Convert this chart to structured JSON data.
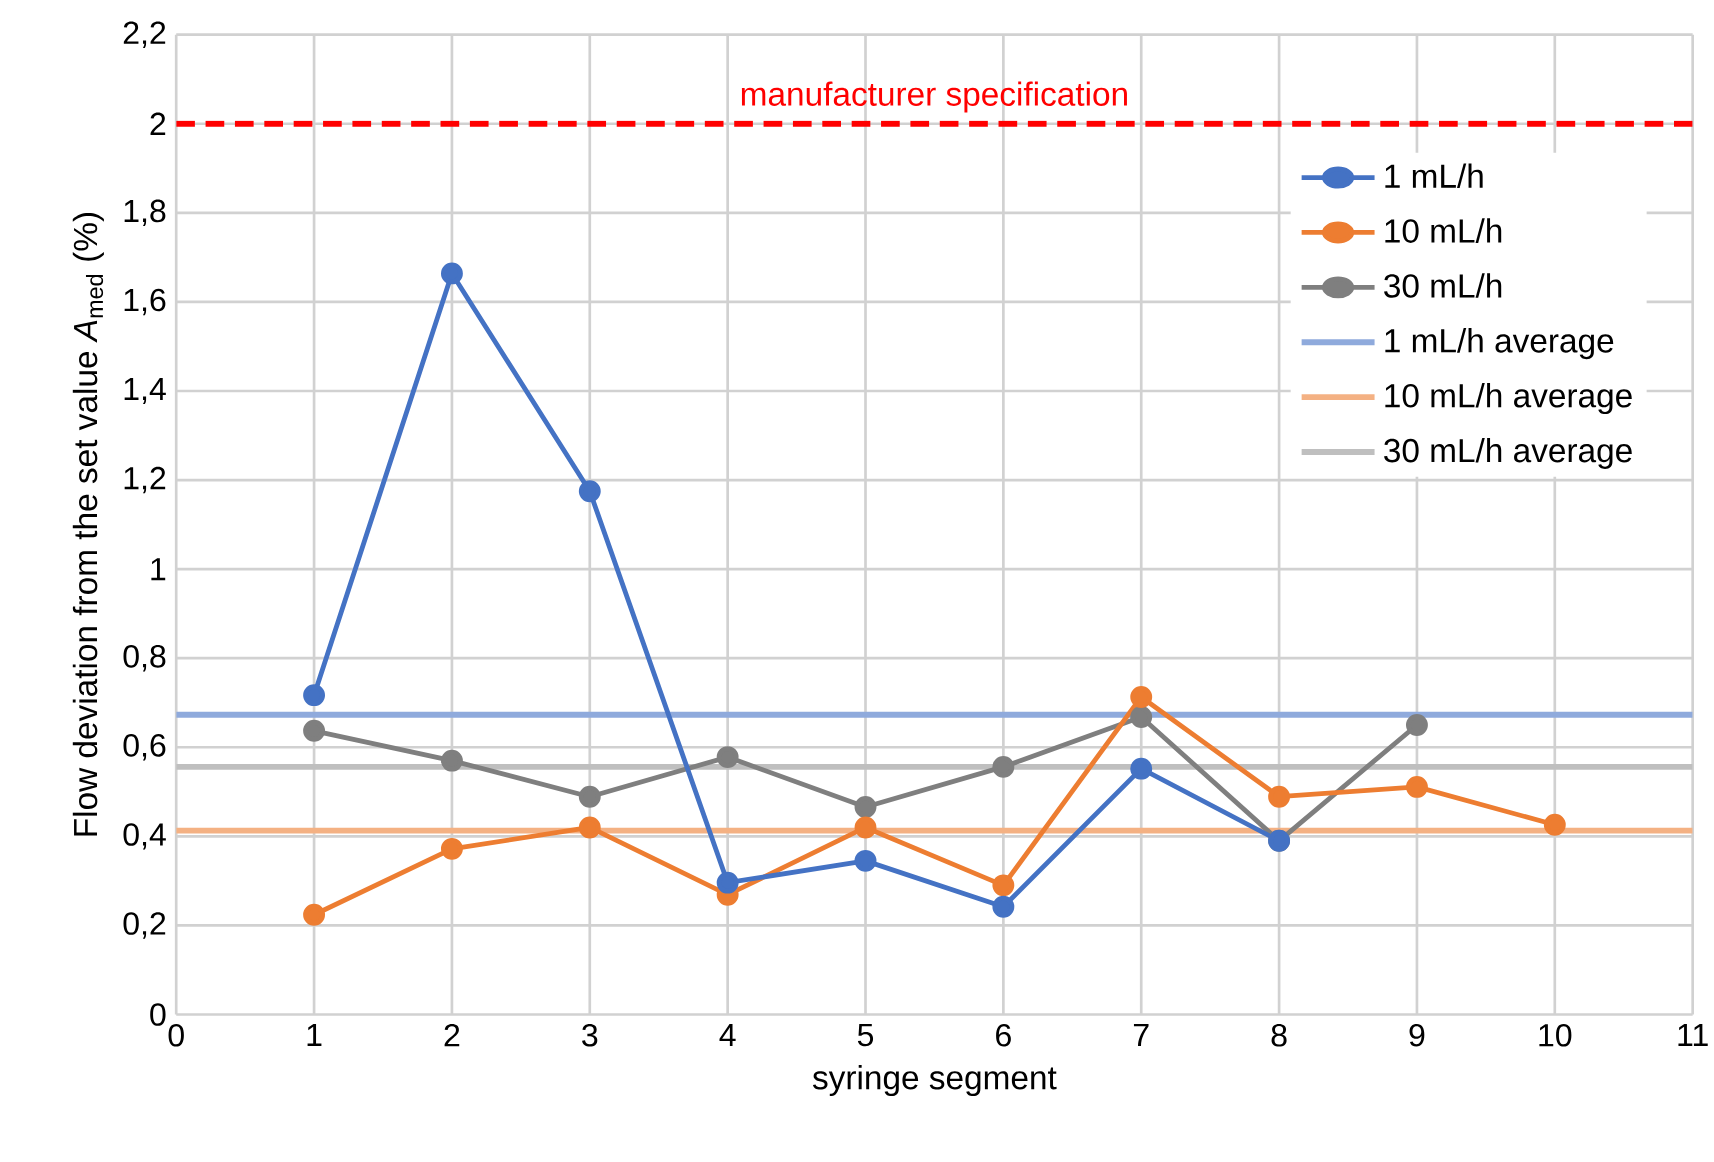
{
  "chart_data": {
    "type": "line",
    "xlabel": "syringe segment",
    "ylabel": "Flow deviation from the set value *A*$_{med}$ (%)",
    "xlim": [
      0,
      11
    ],
    "xticks": [
      0,
      1,
      2,
      3,
      4,
      5,
      6,
      7,
      8,
      9,
      10,
      11
    ],
    "ylim": [
      0,
      2.2
    ],
    "yticks": [
      0,
      {
        "value": 0.2,
        "label": "0,2"
      },
      {
        "value": 0.4,
        "label": "0,4"
      },
      {
        "value": 0.6,
        "label": "0,6"
      },
      {
        "value": 0.8,
        "label": "0,8"
      },
      1,
      {
        "value": 1.2,
        "label": "1,2"
      },
      {
        "value": 1.4,
        "label": "1,4"
      },
      {
        "value": 1.6,
        "label": "1,6"
      },
      {
        "value": 1.8,
        "label": "1,8"
      },
      2,
      {
        "value": 2.2,
        "label": "2,2"
      }
    ],
    "grid": true,
    "legend": "top right",
    "marker": "circle",
    "line_style": "solid",
    "series": [
      {
        "name": "1 mL/h",
        "color": "#4472c4",
        "x": [
          1,
          2,
          3,
          4,
          5,
          6,
          7,
          8
        ],
        "values": [
          0.717,
          1.664,
          1.175,
          0.296,
          0.345,
          0.242,
          0.552,
          0.39
        ]
      },
      {
        "name": "10 mL/h",
        "color": "#ed7d31",
        "x": [
          1,
          2,
          3,
          4,
          5,
          6,
          7,
          8,
          9,
          10
        ],
        "values": [
          0.224,
          0.372,
          0.42,
          0.269,
          0.42,
          0.29,
          0.713,
          0.489,
          0.511,
          0.426
        ]
      },
      {
        "name": "30 mL/h",
        "color": "#7f7f7f",
        "x": [
          1,
          2,
          3,
          4,
          5,
          6,
          7,
          8,
          9
        ],
        "values": [
          0.637,
          0.57,
          0.489,
          0.578,
          0.466,
          0.556,
          0.668,
          0.39,
          0.65
        ]
      },
      {
        "name": "1 mL/h average",
        "color": "#8faadc",
        "marker": "none",
        "x": [
          0,
          11
        ],
        "values": [
          0.673,
          0.673
        ]
      },
      {
        "name": "10 mL/h average",
        "color": "#f4b183",
        "marker": "none",
        "x": [
          0,
          11
        ],
        "values": [
          0.413,
          0.413
        ]
      },
      {
        "name": "30 mL/h average",
        "color": "#bfbfbf",
        "marker": "none",
        "x": [
          0,
          11
        ],
        "values": [
          0.556,
          0.556
        ]
      }
    ],
    "ref_lines": [
      {
        "axis": "y",
        "value": 2,
        "label": "manufacturer specification",
        "color": "#ff0000",
        "line_style": "dashed"
      }
    ]
  }
}
